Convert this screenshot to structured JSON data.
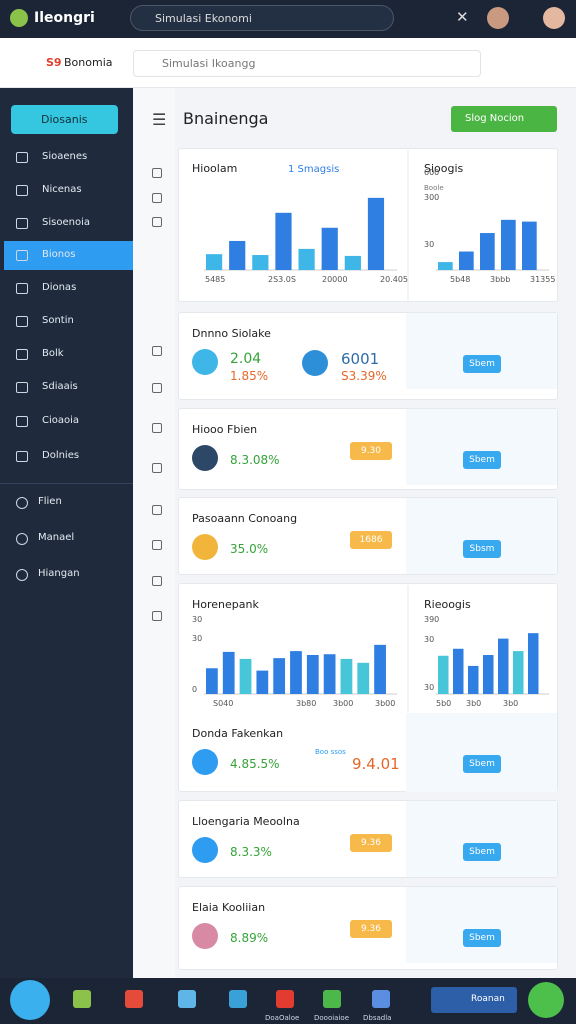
{
  "topbar": {
    "logo": "Ileongri",
    "search": "Simulasi Ekonomi"
  },
  "header": {
    "brand_code": "S9",
    "brand": "Bonomia",
    "search": "Simulasi Ikoangg"
  },
  "sidebar": {
    "button": "Diosanis",
    "items": [
      "Sioaenes",
      "Nicenas",
      "Sisoenoia",
      "Bionos",
      "Dionas",
      "Sontin",
      "Bolk",
      "Sdiaais",
      "Cioaoia",
      "Dolnies"
    ],
    "footer_items": [
      "Flien",
      "Manael",
      "Hiangan"
    ]
  },
  "main": {
    "title": "Bnainenga",
    "action": "Slog Nocion"
  },
  "charts": [
    {
      "title": "Hioolam",
      "legend": "1 Smagsis",
      "xlabels": [
        "5485",
        "2S3.0S",
        "20000",
        "20.405"
      ],
      "ylabels": [],
      "ylim": [
        0,
        100
      ],
      "values": [
        18,
        33,
        17,
        65,
        24,
        48,
        16,
        82
      ],
      "colors": [
        "#3fb6e8",
        "#2f7fe3",
        "#3fb6e8",
        "#2f7fe3",
        "#3fb6e8",
        "#2f7fe3",
        "#3fb6e8",
        "#2f7fe3"
      ]
    },
    {
      "title": "Sioogis",
      "legend": "Boole",
      "xlabels": [
        "5b48",
        "3bbb",
        "31355"
      ],
      "ylabels": [
        "600",
        "300",
        "30"
      ],
      "ylim": [
        0,
        100
      ],
      "values": [
        9,
        21,
        42,
        57,
        55
      ],
      "colors": [
        "#3fb6e8",
        "#2f7fe3",
        "#2f7fe3",
        "#2f7fe3",
        "#2f7fe3"
      ]
    },
    {
      "title": "Horenepank",
      "legend": "",
      "xlabels": [
        "S040",
        "3b80",
        "3b00",
        "3b00"
      ],
      "ylabels": [
        "30",
        "30",
        "0"
      ],
      "ylim": [
        0,
        100
      ],
      "values": [
        33,
        54,
        45,
        30,
        46,
        55,
        50,
        51,
        45,
        40,
        63
      ],
      "colors": [
        "#2f7fe3",
        "#2f7fe3",
        "#46c6d8",
        "#2f7fe3",
        "#2f7fe3",
        "#2f7fe3",
        "#2f7fe3",
        "#2f7fe3",
        "#46c6d8",
        "#46c6d8",
        "#2f7fe3"
      ]
    },
    {
      "title": "Rieoogis",
      "legend": "",
      "xlabels": [
        "5b0",
        "3b0",
        "3b0"
      ],
      "ylabels": [
        "390",
        "30",
        "30"
      ],
      "ylim": [
        0,
        100
      ],
      "values": [
        49,
        58,
        36,
        50,
        71,
        55,
        78
      ],
      "colors": [
        "#46c6d8",
        "#2f7fe3",
        "#2f7fe3",
        "#2f7fe3",
        "#2f7fe3",
        "#46c6d8",
        "#2f7fe3"
      ]
    }
  ],
  "cards": [
    {
      "title": "Dnnno Siolake",
      "value": "2.04",
      "change": "1.85%",
      "value2": "6001",
      "change2": "S3.39%",
      "button": "Sbem"
    },
    {
      "title": "Hiooo Fbien",
      "change": "8.3.08%",
      "badge": "9.30",
      "button": "Sbem"
    },
    {
      "title": "Pasoaann Conoang",
      "change": "35.0%",
      "badge": "1686",
      "button": "Sbsm"
    },
    {
      "title": "Donda Fakenkan",
      "change": "4.85.5%",
      "note": "Boo ssos",
      "value2": "9.4.01",
      "button": "Sbem"
    },
    {
      "title": "Lloengaria Meoolna",
      "change": "8.3.3%",
      "badge": "9.36",
      "button": "Sbem"
    },
    {
      "title": "Elaia Kooliian",
      "change": "8.89%",
      "badge": "9.36",
      "button": "Sbem"
    }
  ],
  "bottombar": {
    "labels": [
      "DoaOaloe",
      "Doooiaioe",
      "Dbsadla"
    ],
    "button": "Roanan"
  }
}
